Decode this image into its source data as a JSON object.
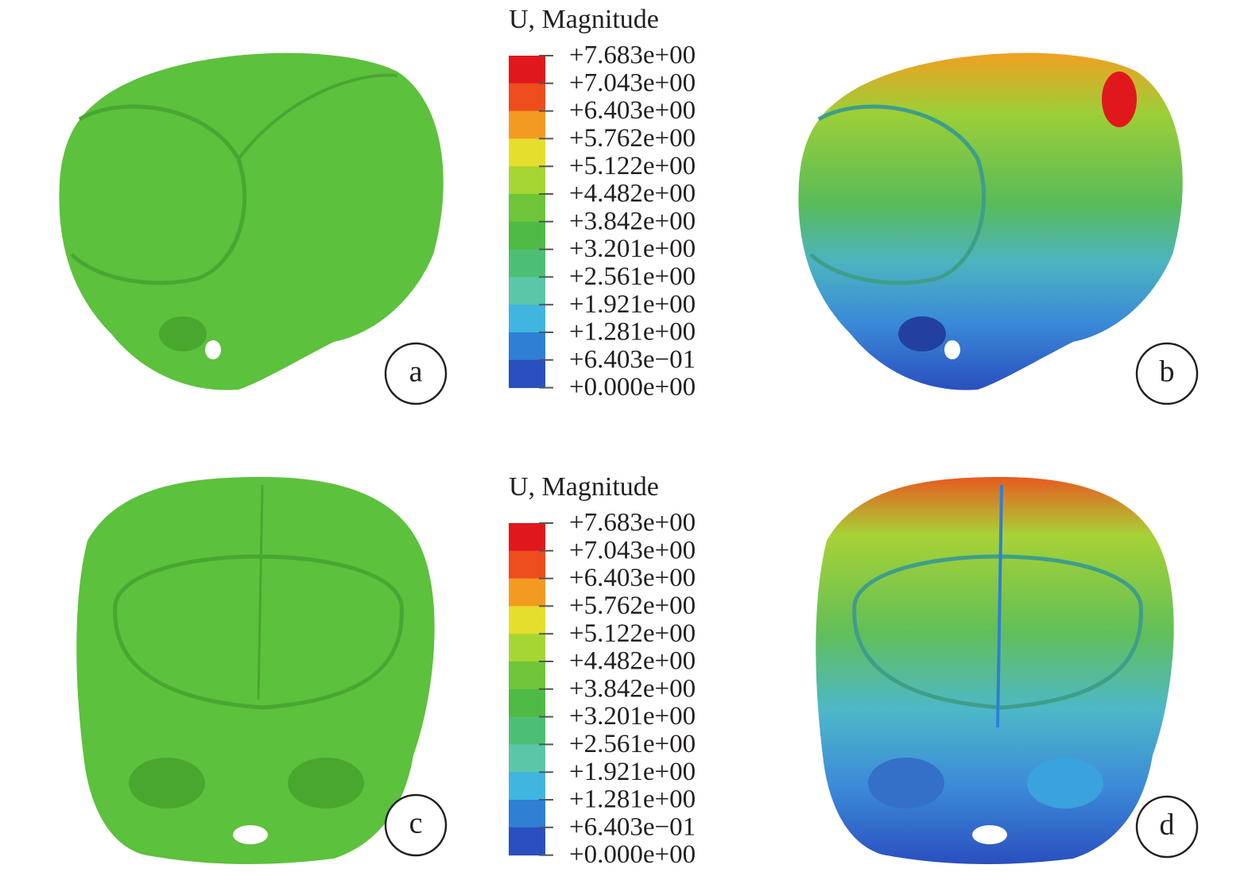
{
  "legends": [
    {
      "title": "U, Magnitude",
      "ticks": [
        "+7.683e+00",
        "+7.043e+00",
        "+6.403e+00",
        "+5.762e+00",
        "+5.122e+00",
        "+4.482e+00",
        "+3.842e+00",
        "+3.201e+00",
        "+2.561e+00",
        "+1.921e+00",
        "+1.281e+00",
        "+6.403e−01",
        "+0.000e+00"
      ],
      "colors": [
        "#e0181c",
        "#ee4d1e",
        "#f39a22",
        "#e6de2c",
        "#a6d633",
        "#6ec53a",
        "#4fbb44",
        "#4dbf74",
        "#5cc6a8",
        "#3fb5e0",
        "#2f7fd4",
        "#2a4fbf"
      ]
    },
    {
      "title": "U, Magnitude",
      "ticks": [
        "+7.683e+00",
        "+7.043e+00",
        "+6.403e+00",
        "+5.762e+00",
        "+5.122e+00",
        "+4.482e+00",
        "+3.842e+00",
        "+3.201e+00",
        "+2.561e+00",
        "+1.921e+00",
        "+1.281e+00",
        "+6.403e−01",
        "+0.000e+00"
      ],
      "colors": [
        "#e0181c",
        "#ee4d1e",
        "#f39a22",
        "#e6de2c",
        "#a6d633",
        "#6ec53a",
        "#4fbb44",
        "#4dbf74",
        "#5cc6a8",
        "#3fb5e0",
        "#2f7fd4",
        "#2a4fbf"
      ]
    }
  ],
  "panels": [
    {
      "label": "a"
    },
    {
      "label": "b"
    },
    {
      "label": "c"
    },
    {
      "label": "d"
    }
  ]
}
